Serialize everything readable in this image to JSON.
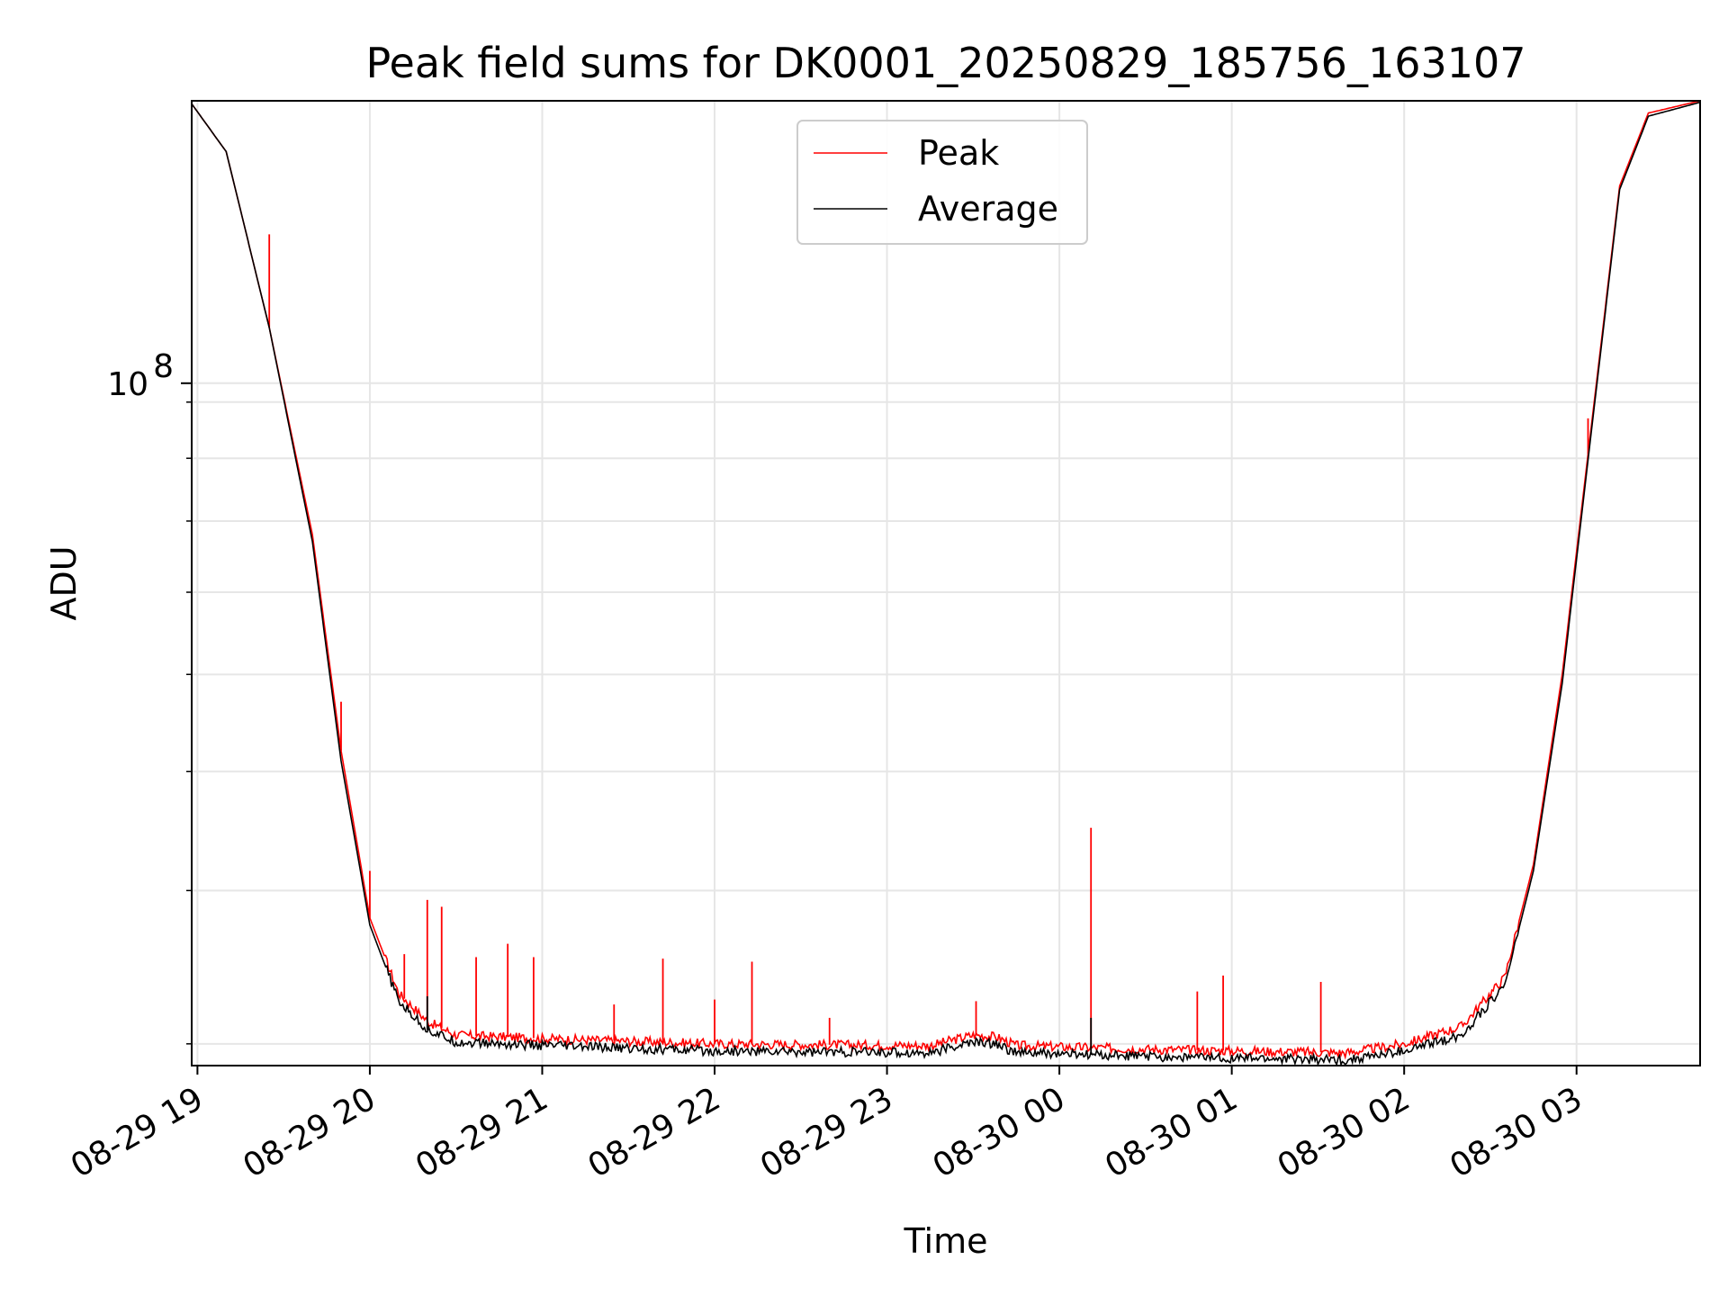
{
  "chart_data": {
    "type": "line",
    "title": "Peak field sums for DK0001_20250829_185756_163107",
    "xlabel": "Time",
    "ylabel": "ADU",
    "x_tick_labels": [
      "08-29 19",
      "08-29 20",
      "08-29 21",
      "08-29 22",
      "08-29 23",
      "08-30 00",
      "08-30 01",
      "08-30 02",
      "08-30 03"
    ],
    "y_tick_labels": [
      {
        "value": 100000000,
        "base": "10",
        "exp": "8"
      }
    ],
    "y_scale": "log",
    "x_range": [
      "2025-08-29 18:58",
      "2025-08-30 03:43"
    ],
    "ylim": [
      28800000,
      176000000
    ],
    "grid": true,
    "legend_position": "top-center",
    "series": [
      {
        "name": "Peak",
        "color": "#ff0000",
        "points": [
          [
            "2025-08-29 18:58",
            175000000
          ],
          [
            "2025-08-29 19:10",
            160000000
          ],
          [
            "2025-08-29 19:25",
            115000000
          ],
          [
            "2025-08-29 19:40",
            78000000
          ],
          [
            "2025-08-29 19:50",
            52000000
          ],
          [
            "2025-08-29 20:00",
            38000000
          ],
          [
            "2025-08-29 20:10",
            33000000
          ],
          [
            "2025-08-29 20:20",
            31300000
          ],
          [
            "2025-08-29 20:30",
            30500000
          ],
          [
            "2025-08-29 21:00",
            30300000
          ],
          [
            "2025-08-29 22:00",
            30000000
          ],
          [
            "2025-08-29 23:15",
            29900000
          ],
          [
            "2025-08-29 23:30",
            30500000
          ],
          [
            "2025-08-29 23:38",
            30400000
          ],
          [
            "2025-08-29 23:45",
            29900000
          ],
          [
            "2025-08-30 00:30",
            29700000
          ],
          [
            "2025-08-30 01:40",
            29500000
          ],
          [
            "2025-08-30 02:00",
            30000000
          ],
          [
            "2025-08-30 02:20",
            31000000
          ],
          [
            "2025-08-30 02:35",
            34000000
          ],
          [
            "2025-08-30 02:45",
            42000000
          ],
          [
            "2025-08-30 02:55",
            60000000
          ],
          [
            "2025-08-30 03:05",
            95000000
          ],
          [
            "2025-08-30 03:15",
            150000000
          ],
          [
            "2025-08-30 03:25",
            172000000
          ],
          [
            "2025-08-30 03:43",
            176000000
          ]
        ],
        "spikes": [
          [
            "2025-08-29 19:25",
            137000000
          ],
          [
            "2025-08-29 19:50",
            57000000
          ],
          [
            "2025-08-29 20:00",
            41500000
          ],
          [
            "2025-08-29 20:12",
            35500000
          ],
          [
            "2025-08-29 20:20",
            39300000
          ],
          [
            "2025-08-29 20:25",
            38800000
          ],
          [
            "2025-08-29 20:37",
            35300000
          ],
          [
            "2025-08-29 20:48",
            36200000
          ],
          [
            "2025-08-29 20:57",
            35300000
          ],
          [
            "2025-08-29 21:25",
            32300000
          ],
          [
            "2025-08-29 21:42",
            35200000
          ],
          [
            "2025-08-29 22:00",
            32600000
          ],
          [
            "2025-08-29 22:13",
            35000000
          ],
          [
            "2025-08-29 22:40",
            31500000
          ],
          [
            "2025-08-29 23:31",
            32500000
          ],
          [
            "2025-08-30 00:11",
            45000000
          ],
          [
            "2025-08-30 00:48",
            33100000
          ],
          [
            "2025-08-30 00:57",
            34100000
          ],
          [
            "2025-08-30 01:31",
            33700000
          ],
          [
            "2025-08-30 03:04",
            97000000
          ]
        ]
      },
      {
        "name": "Average",
        "color": "#000000",
        "points": [
          [
            "2025-08-29 18:58",
            175000000
          ],
          [
            "2025-08-29 19:10",
            160000000
          ],
          [
            "2025-08-29 19:25",
            115000000
          ],
          [
            "2025-08-29 19:40",
            77000000
          ],
          [
            "2025-08-29 19:50",
            51000000
          ],
          [
            "2025-08-29 20:00",
            37500000
          ],
          [
            "2025-08-29 20:10",
            32500000
          ],
          [
            "2025-08-29 20:20",
            30800000
          ],
          [
            "2025-08-29 20:30",
            30100000
          ],
          [
            "2025-08-29 21:00",
            29900000
          ],
          [
            "2025-08-29 22:00",
            29600000
          ],
          [
            "2025-08-29 23:15",
            29500000
          ],
          [
            "2025-08-29 23:30",
            30100000
          ],
          [
            "2025-08-29 23:38",
            30000000
          ],
          [
            "2025-08-29 23:45",
            29500000
          ],
          [
            "2025-08-30 00:30",
            29300000
          ],
          [
            "2025-08-30 01:40",
            29100000
          ],
          [
            "2025-08-30 02:00",
            29600000
          ],
          [
            "2025-08-30 02:20",
            30500000
          ],
          [
            "2025-08-30 02:35",
            33500000
          ],
          [
            "2025-08-30 02:45",
            41500000
          ],
          [
            "2025-08-30 02:55",
            59000000
          ],
          [
            "2025-08-30 03:05",
            94000000
          ],
          [
            "2025-08-30 03:15",
            149000000
          ],
          [
            "2025-08-30 03:25",
            171000000
          ],
          [
            "2025-08-30 03:43",
            175500000
          ]
        ],
        "spikes": [
          [
            "2025-08-29 20:20",
            32800000
          ],
          [
            "2025-08-30 00:11",
            31500000
          ]
        ]
      }
    ]
  }
}
